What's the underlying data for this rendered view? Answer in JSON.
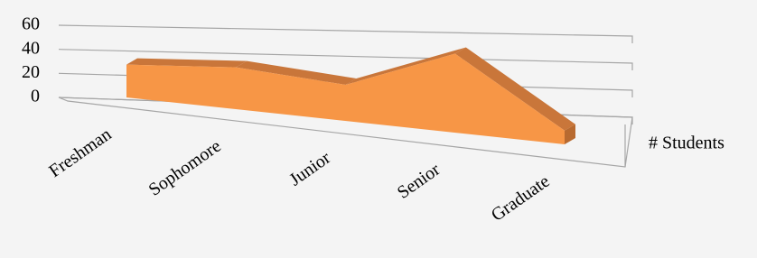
{
  "chart_data": {
    "type": "area3d",
    "categories": [
      "Freshman",
      "Sophomore",
      "Junior",
      "Senior",
      "Graduate"
    ],
    "series": [
      {
        "name": "# Students",
        "color": "#f79646",
        "values": [
          28,
          32,
          25,
          50,
          8
        ]
      }
    ],
    "ylim": [
      0,
      60
    ],
    "yticks": [
      0,
      20,
      40,
      60
    ],
    "grid": true
  }
}
